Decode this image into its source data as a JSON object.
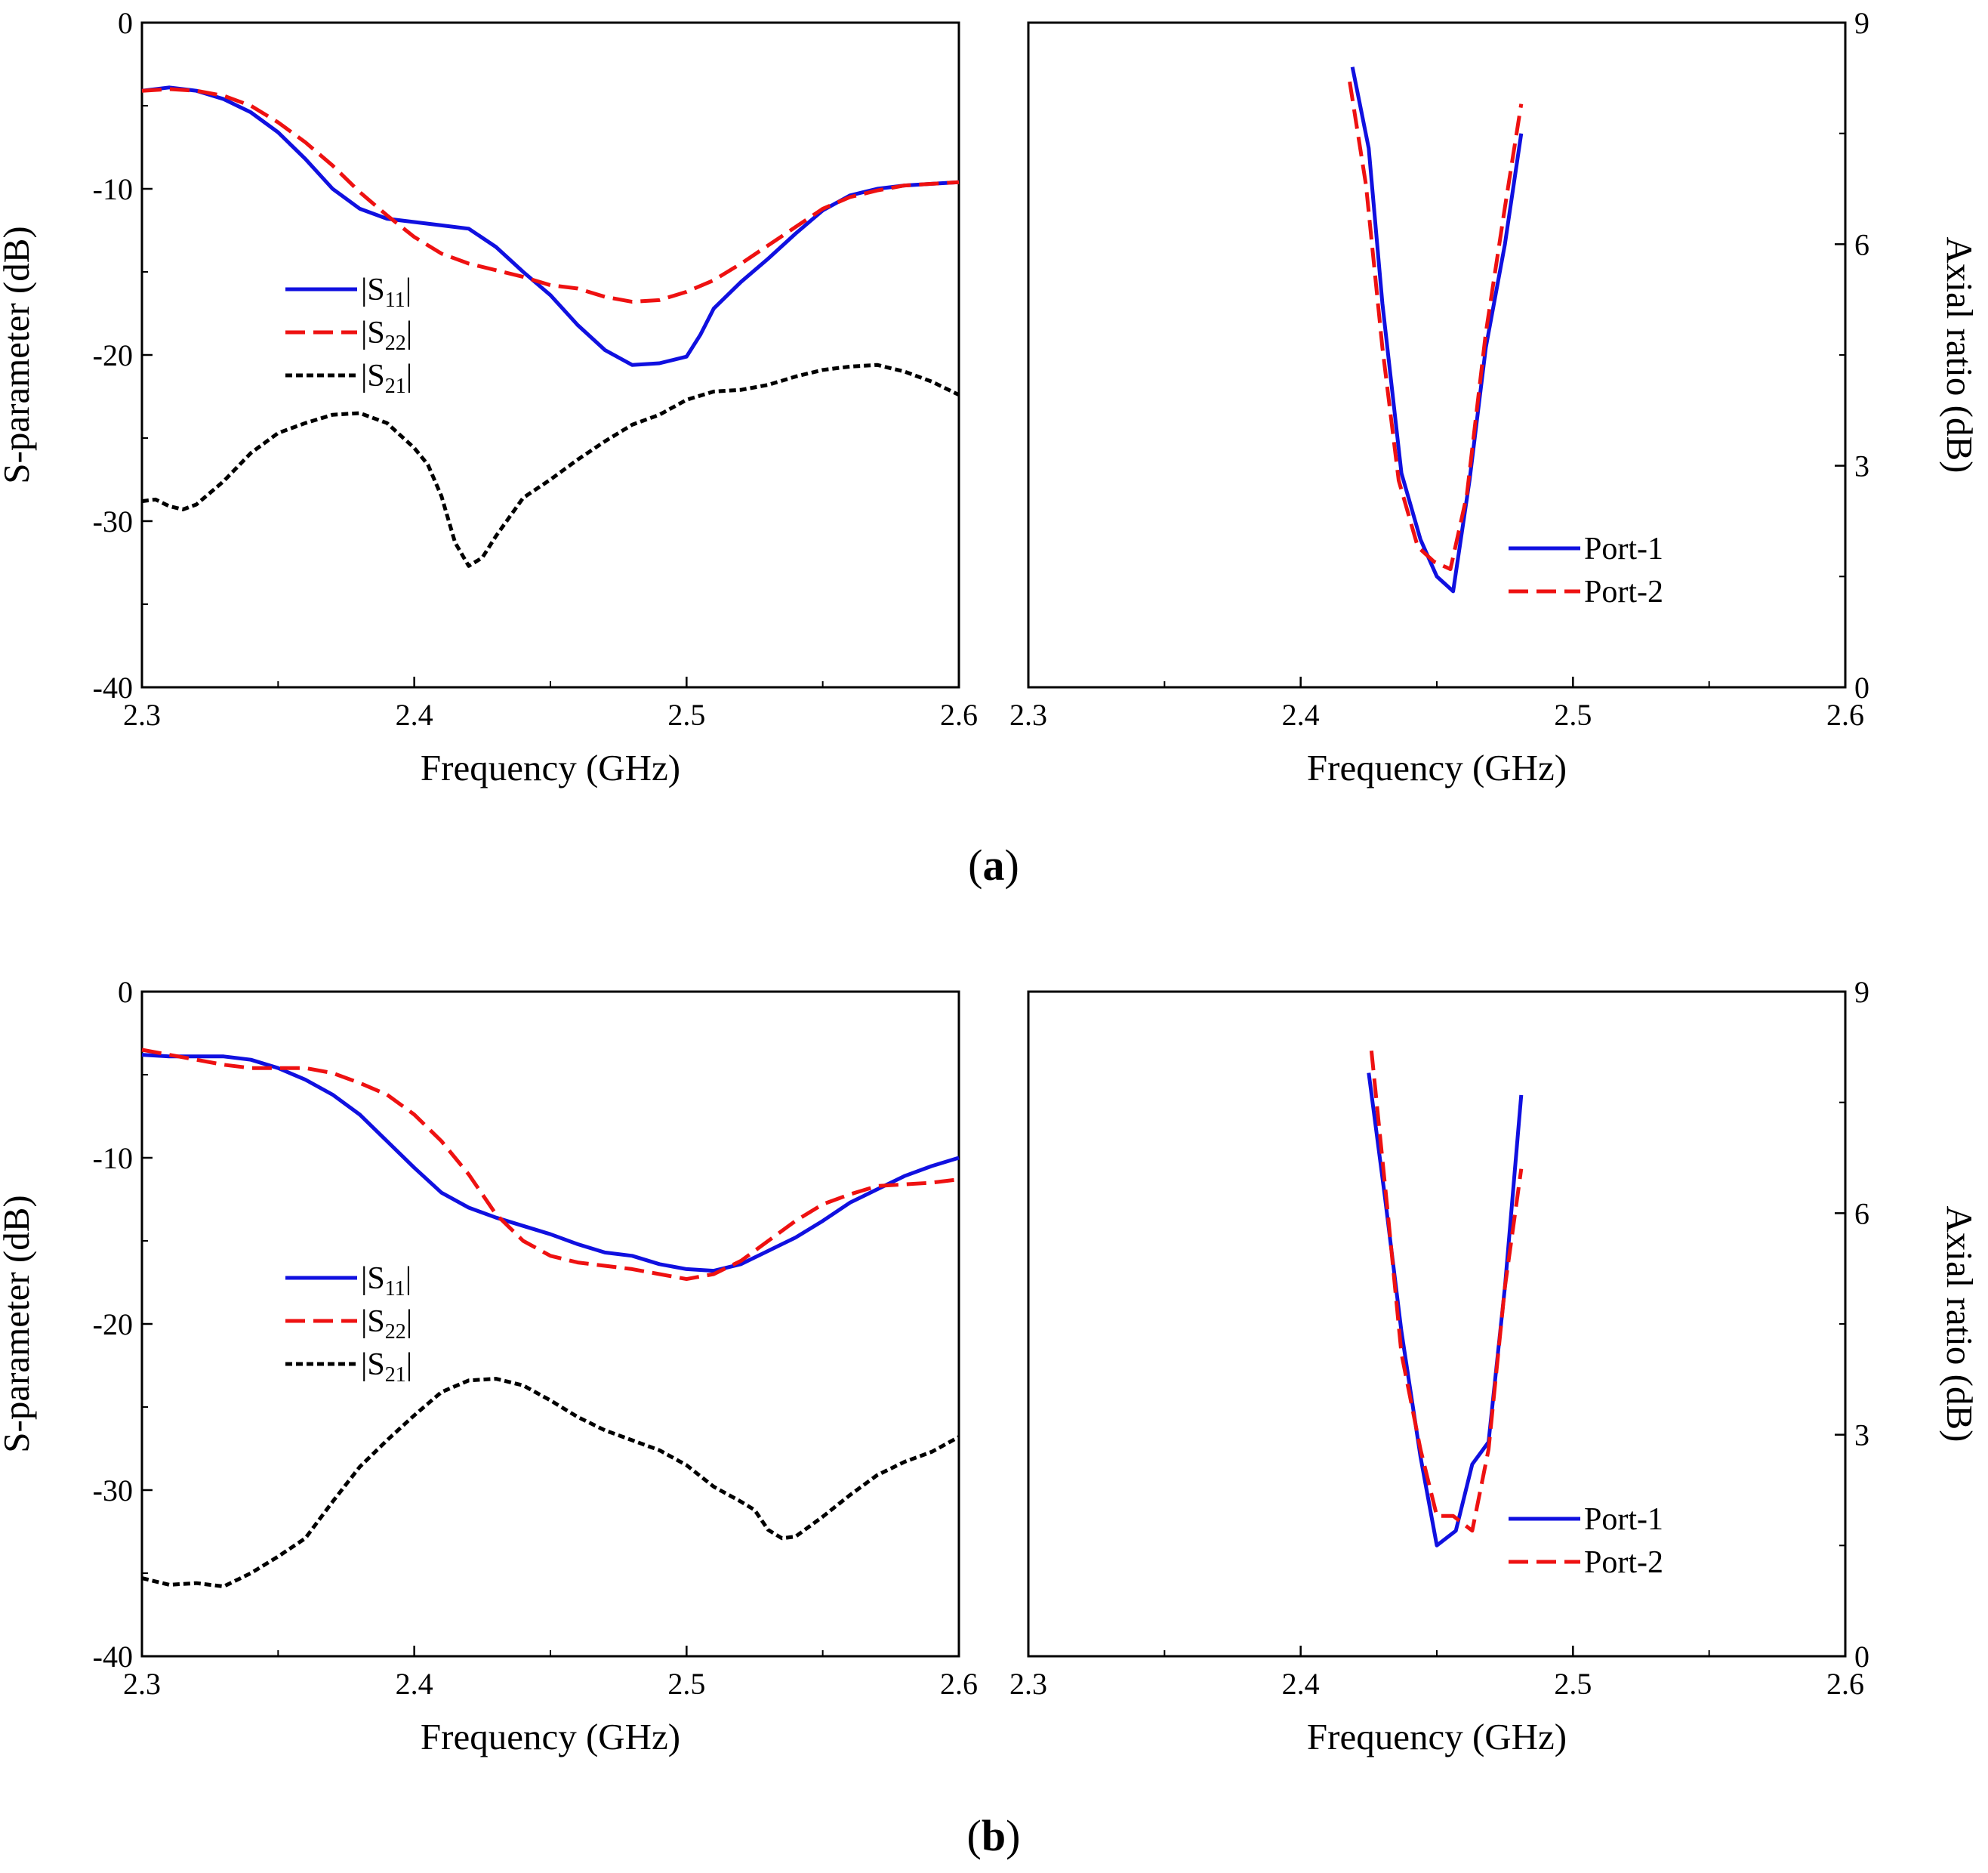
{
  "figure": {
    "panel_labels": [
      {
        "open": "(",
        "letter": "a",
        "close": ")"
      },
      {
        "open": "(",
        "letter": "b",
        "close": ")"
      }
    ]
  },
  "chart_data": [
    {
      "id": "a-sparam",
      "type": "line",
      "xlabel": "Frequency (GHz)",
      "ylabel": "S-parameter (dB)",
      "xlim": [
        2.3,
        2.6
      ],
      "ylim": [
        -40,
        0
      ],
      "xticks": [
        "2.3",
        "2.4",
        "2.5",
        "2.6"
      ],
      "yticks": [
        "0",
        "-10",
        "-20",
        "-30",
        "-40"
      ],
      "legend_position": "center-left",
      "series": [
        {
          "name": "|S11|",
          "label_main": "|S",
          "label_sub": "11",
          "label_end": "|",
          "color": "#1010e0",
          "dash": "solid",
          "x": [
            2.3,
            2.31,
            2.32,
            2.33,
            2.34,
            2.35,
            2.36,
            2.37,
            2.38,
            2.39,
            2.4,
            2.41,
            2.42,
            2.43,
            2.44,
            2.45,
            2.46,
            2.47,
            2.48,
            2.49,
            2.5,
            2.505,
            2.51,
            2.52,
            2.53,
            2.54,
            2.55,
            2.56,
            2.57,
            2.58,
            2.59,
            2.6
          ],
          "y": [
            -4.1,
            -3.9,
            -4.1,
            -4.6,
            -5.4,
            -6.6,
            -8.2,
            -10.0,
            -11.2,
            -11.8,
            -12.0,
            -12.2,
            -12.4,
            -13.5,
            -15.0,
            -16.4,
            -18.2,
            -19.7,
            -20.6,
            -20.5,
            -20.1,
            -18.8,
            -17.2,
            -15.6,
            -14.2,
            -12.7,
            -11.3,
            -10.4,
            -10.0,
            -9.8,
            -9.7,
            -9.6
          ]
        },
        {
          "name": "|S22|",
          "label_main": "|S",
          "label_sub": "22",
          "label_end": "|",
          "color": "#ee1111",
          "dash": "dashed",
          "x": [
            2.3,
            2.31,
            2.32,
            2.33,
            2.34,
            2.35,
            2.36,
            2.37,
            2.38,
            2.39,
            2.4,
            2.41,
            2.42,
            2.43,
            2.44,
            2.45,
            2.46,
            2.47,
            2.48,
            2.49,
            2.5,
            2.51,
            2.52,
            2.53,
            2.54,
            2.55,
            2.56,
            2.57,
            2.58,
            2.59,
            2.6
          ],
          "y": [
            -4.1,
            -4.0,
            -4.1,
            -4.4,
            -5.0,
            -6.0,
            -7.2,
            -8.6,
            -10.2,
            -11.6,
            -12.9,
            -13.9,
            -14.5,
            -14.9,
            -15.3,
            -15.8,
            -16.0,
            -16.5,
            -16.8,
            -16.7,
            -16.2,
            -15.5,
            -14.5,
            -13.4,
            -12.3,
            -11.2,
            -10.5,
            -10.1,
            -9.8,
            -9.7,
            -9.6
          ]
        },
        {
          "name": "|S21|",
          "label_main": "|S",
          "label_sub": "21",
          "label_end": "|",
          "color": "#000000",
          "dash": "dotted",
          "x": [
            2.3,
            2.305,
            2.31,
            2.315,
            2.32,
            2.33,
            2.34,
            2.35,
            2.36,
            2.37,
            2.38,
            2.39,
            2.4,
            2.405,
            2.41,
            2.415,
            2.42,
            2.425,
            2.43,
            2.44,
            2.45,
            2.46,
            2.47,
            2.48,
            2.49,
            2.5,
            2.51,
            2.52,
            2.53,
            2.54,
            2.55,
            2.56,
            2.57,
            2.58,
            2.59,
            2.6
          ],
          "y": [
            -28.8,
            -28.7,
            -29.1,
            -29.3,
            -29.0,
            -27.6,
            -25.9,
            -24.7,
            -24.1,
            -23.6,
            -23.5,
            -24.1,
            -25.6,
            -26.6,
            -28.5,
            -31.3,
            -32.7,
            -32.2,
            -30.9,
            -28.6,
            -27.5,
            -26.3,
            -25.2,
            -24.2,
            -23.6,
            -22.7,
            -22.2,
            -22.1,
            -21.8,
            -21.3,
            -20.9,
            -20.7,
            -20.6,
            -21.0,
            -21.6,
            -22.4
          ]
        }
      ]
    },
    {
      "id": "a-axial",
      "type": "line",
      "xlabel": "Frequency (GHz)",
      "ylabel": "Axial ratio (dB)",
      "xlim": [
        2.3,
        2.6
      ],
      "ylim": [
        0,
        9
      ],
      "xticks": [
        "2.3",
        "2.4",
        "2.5",
        "2.6"
      ],
      "yticks": [
        "0",
        "3",
        "6",
        "9"
      ],
      "yaxis_side": "right",
      "legend_position": "lower-right",
      "series": [
        {
          "name": "Port-1",
          "color": "#1010e0",
          "dash": "solid",
          "x": [
            2.419,
            2.425,
            2.43,
            2.437,
            2.444,
            2.45,
            2.456,
            2.462,
            2.468,
            2.475,
            2.481
          ],
          "y": [
            8.4,
            7.3,
            5.2,
            2.9,
            2.0,
            1.5,
            1.3,
            2.8,
            4.6,
            6.0,
            7.5
          ]
        },
        {
          "name": "Port-2",
          "color": "#ee1111",
          "dash": "dashed",
          "x": [
            2.418,
            2.424,
            2.43,
            2.436,
            2.443,
            2.449,
            2.455,
            2.461,
            2.468,
            2.475,
            2.481
          ],
          "y": [
            8.2,
            6.8,
            4.6,
            2.8,
            1.9,
            1.7,
            1.6,
            2.6,
            4.8,
            6.5,
            7.9
          ]
        }
      ]
    },
    {
      "id": "b-sparam",
      "type": "line",
      "xlabel": "Frequency (GHz)",
      "ylabel": "S-parameter (dB)",
      "xlim": [
        2.3,
        2.6
      ],
      "ylim": [
        -40,
        0
      ],
      "xticks": [
        "2.3",
        "2.4",
        "2.5",
        "2.6"
      ],
      "yticks": [
        "0",
        "-10",
        "-20",
        "-30",
        "-40"
      ],
      "legend_position": "center-left",
      "series": [
        {
          "name": "|S11|",
          "label_main": "|S",
          "label_sub": "11",
          "label_end": "|",
          "color": "#1010e0",
          "dash": "solid",
          "x": [
            2.3,
            2.31,
            2.32,
            2.33,
            2.34,
            2.35,
            2.36,
            2.37,
            2.38,
            2.39,
            2.4,
            2.41,
            2.42,
            2.43,
            2.44,
            2.45,
            2.46,
            2.47,
            2.48,
            2.49,
            2.5,
            2.51,
            2.52,
            2.53,
            2.54,
            2.55,
            2.56,
            2.57,
            2.58,
            2.59,
            2.6
          ],
          "y": [
            -3.8,
            -3.9,
            -3.9,
            -3.9,
            -4.1,
            -4.6,
            -5.3,
            -6.2,
            -7.4,
            -9.0,
            -10.6,
            -12.1,
            -13.0,
            -13.6,
            -14.1,
            -14.6,
            -15.2,
            -15.7,
            -15.9,
            -16.4,
            -16.7,
            -16.8,
            -16.4,
            -15.6,
            -14.8,
            -13.8,
            -12.7,
            -11.9,
            -11.1,
            -10.5,
            -10.0
          ]
        },
        {
          "name": "|S22|",
          "label_main": "|S",
          "label_sub": "22",
          "label_end": "|",
          "color": "#ee1111",
          "dash": "dashed",
          "x": [
            2.3,
            2.31,
            2.32,
            2.33,
            2.34,
            2.35,
            2.36,
            2.37,
            2.38,
            2.39,
            2.4,
            2.41,
            2.42,
            2.43,
            2.44,
            2.45,
            2.46,
            2.47,
            2.48,
            2.49,
            2.5,
            2.51,
            2.52,
            2.53,
            2.54,
            2.55,
            2.56,
            2.57,
            2.58,
            2.59,
            2.6
          ],
          "y": [
            -3.5,
            -3.8,
            -4.1,
            -4.4,
            -4.6,
            -4.6,
            -4.6,
            -4.9,
            -5.5,
            -6.2,
            -7.4,
            -9.0,
            -11.0,
            -13.4,
            -15.0,
            -15.9,
            -16.3,
            -16.5,
            -16.7,
            -17.0,
            -17.3,
            -17.0,
            -16.2,
            -15.0,
            -13.8,
            -12.8,
            -12.2,
            -11.7,
            -11.6,
            -11.5,
            -11.3
          ]
        },
        {
          "name": "|S21|",
          "label_main": "|S",
          "label_sub": "21",
          "label_end": "|",
          "color": "#000000",
          "dash": "dotted",
          "x": [
            2.3,
            2.31,
            2.32,
            2.33,
            2.34,
            2.35,
            2.36,
            2.37,
            2.38,
            2.39,
            2.4,
            2.41,
            2.42,
            2.43,
            2.44,
            2.45,
            2.46,
            2.47,
            2.48,
            2.49,
            2.5,
            2.51,
            2.52,
            2.525,
            2.53,
            2.535,
            2.54,
            2.55,
            2.56,
            2.57,
            2.58,
            2.59,
            2.6
          ],
          "y": [
            -35.3,
            -35.7,
            -35.6,
            -35.8,
            -35.0,
            -34.0,
            -32.9,
            -30.7,
            -28.6,
            -27.0,
            -25.5,
            -24.1,
            -23.4,
            -23.3,
            -23.7,
            -24.6,
            -25.6,
            -26.4,
            -27.0,
            -27.6,
            -28.5,
            -29.8,
            -30.7,
            -31.2,
            -32.4,
            -32.9,
            -32.8,
            -31.6,
            -30.3,
            -29.1,
            -28.3,
            -27.7,
            -26.8
          ]
        }
      ]
    },
    {
      "id": "b-axial",
      "type": "line",
      "xlabel": "Frequency (GHz)",
      "ylabel": "Axial ratio (dB)",
      "xlim": [
        2.3,
        2.6
      ],
      "ylim": [
        0,
        9
      ],
      "xticks": [
        "2.3",
        "2.4",
        "2.5",
        "2.6"
      ],
      "yticks": [
        "0",
        "3",
        "6",
        "9"
      ],
      "yaxis_side": "right",
      "legend_position": "lower-right",
      "series": [
        {
          "name": "Port-1",
          "color": "#1010e0",
          "dash": "solid",
          "x": [
            2.425,
            2.431,
            2.437,
            2.444,
            2.45,
            2.457,
            2.463,
            2.469,
            2.475,
            2.481
          ],
          "y": [
            7.9,
            6.2,
            4.4,
            2.7,
            1.5,
            1.7,
            2.6,
            2.9,
            5.0,
            7.6
          ]
        },
        {
          "name": "Port-2",
          "color": "#ee1111",
          "dash": "dashed",
          "x": [
            2.426,
            2.432,
            2.437,
            2.444,
            2.45,
            2.456,
            2.463,
            2.469,
            2.475,
            2.481
          ],
          "y": [
            8.2,
            6.0,
            4.1,
            2.8,
            1.9,
            1.9,
            1.7,
            2.8,
            5.0,
            6.6
          ]
        }
      ]
    }
  ]
}
